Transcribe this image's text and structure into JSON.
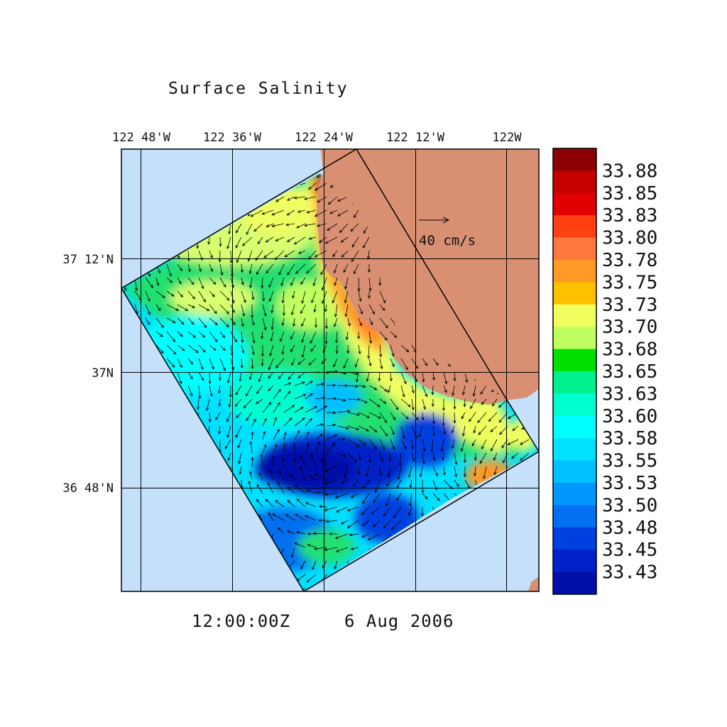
{
  "title": "Surface Salinity",
  "timestamp": {
    "time": "12:00:00Z",
    "date": "6 Aug 2006"
  },
  "axes": {
    "lon_labels": [
      "122 48'W",
      "122 36'W",
      "122 24'W",
      "122 12'W",
      "122W"
    ],
    "lat_labels": [
      "37 12'N",
      "37N",
      "36 48'N"
    ]
  },
  "vector_scale": {
    "label": "40 cm/s"
  },
  "colorbar": {
    "labels": [
      "33.88",
      "33.85",
      "33.83",
      "33.80",
      "33.78",
      "33.75",
      "33.73",
      "33.70",
      "33.68",
      "33.65",
      "33.63",
      "33.60",
      "33.58",
      "33.55",
      "33.53",
      "33.50",
      "33.48",
      "33.45",
      "33.43"
    ],
    "colors": [
      "#8b0000",
      "#c40000",
      "#e00000",
      "#ff4010",
      "#ff7840",
      "#ff9a28",
      "#ffc000",
      "#f0ff60",
      "#c0ff60",
      "#00e000",
      "#00f090",
      "#00ffd0",
      "#00ffff",
      "#00e0ff",
      "#00c0ff",
      "#0098ff",
      "#0070f0",
      "#0040e0",
      "#0020c8",
      "#0010a8"
    ]
  },
  "colors": {
    "ocean": "#c4e0fa",
    "land": "#d99072",
    "frame": "#000000"
  }
}
